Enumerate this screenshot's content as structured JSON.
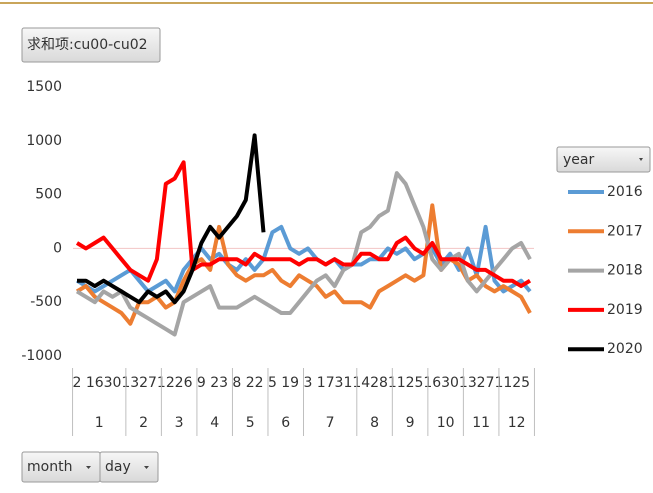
{
  "chart_data": {
    "type": "line",
    "title": "求和项:cu00-cu02",
    "legend_title": "year",
    "filters": [
      "month",
      "day"
    ],
    "categories": [
      "2",
      null,
      "16",
      null,
      "30",
      null,
      "13",
      null,
      "27",
      null,
      "12",
      null,
      "26",
      null,
      "9",
      null,
      "23",
      null,
      "8",
      null,
      "22",
      null,
      "5",
      null,
      "19",
      null,
      "3",
      null,
      "17",
      null,
      "31",
      null,
      "14",
      null,
      "28",
      null,
      "11",
      null,
      "25",
      null,
      "16",
      null,
      "30",
      null,
      "13",
      null,
      "27",
      null,
      "11",
      null,
      "25",
      null
    ],
    "months": [
      "1",
      "1",
      "1",
      "1",
      "1",
      "1",
      "2",
      "2",
      "2",
      "2",
      "3",
      "3",
      "3",
      "3",
      "4",
      "4",
      "4",
      "4",
      "5",
      "5",
      "5",
      "5",
      "6",
      "6",
      "6",
      "6",
      "7",
      "7",
      "7",
      "7",
      "7",
      "7",
      "8",
      "8",
      "8",
      "8",
      "9",
      "9",
      "9",
      "9",
      "10",
      "10",
      "10",
      "10",
      "11",
      "11",
      "11",
      "11",
      "12",
      "12",
      "12",
      "12"
    ],
    "ylim": [
      -1000,
      1500
    ],
    "yticks": [
      -1000,
      -500,
      0,
      500,
      1000,
      1500
    ],
    "zero_line": true,
    "legend": "right",
    "series": [
      {
        "name": "2016",
        "color": "#5b9bd5",
        "values": [
          -300,
          -350,
          -400,
          -350,
          -300,
          -250,
          -200,
          -300,
          -400,
          -350,
          -300,
          -400,
          -200,
          -100,
          0,
          -100,
          -50,
          -150,
          -200,
          -100,
          -200,
          -100,
          150,
          200,
          0,
          -50,
          0,
          -100,
          -150,
          -100,
          -200,
          -150,
          -150,
          -100,
          -100,
          0,
          -50,
          0,
          -100,
          -50,
          0,
          -150,
          -50,
          -200,
          0,
          -250,
          200,
          -300,
          -400,
          -350,
          -300,
          -400
        ]
      },
      {
        "name": "2017",
        "color": "#ed7d31",
        "values": [
          -400,
          -350,
          -450,
          -500,
          -550,
          -600,
          -700,
          -500,
          -500,
          -450,
          -550,
          -500,
          -300,
          -150,
          -100,
          -200,
          200,
          -150,
          -250,
          -300,
          -250,
          -250,
          -200,
          -300,
          -350,
          -250,
          -300,
          -350,
          -450,
          -400,
          -500,
          -500,
          -500,
          -550,
          -400,
          -350,
          -300,
          -250,
          -300,
          -250,
          400,
          -200,
          -100,
          -150,
          -300,
          -250,
          -350,
          -400,
          -350,
          -400,
          -450,
          -600
        ]
      },
      {
        "name": "2018",
        "color": "#a5a5a5",
        "values": [
          -400,
          -450,
          -500,
          -400,
          -450,
          -400,
          -550,
          -600,
          -650,
          -700,
          -750,
          -800,
          -500,
          -450,
          -400,
          -350,
          -550,
          -550,
          -550,
          -500,
          -450,
          -500,
          -550,
          -600,
          -600,
          -500,
          -400,
          -300,
          -250,
          -350,
          -200,
          -150,
          150,
          200,
          300,
          350,
          700,
          600,
          400,
          200,
          -100,
          -200,
          -100,
          -50,
          -300,
          -400,
          -300,
          -200,
          -100,
          0,
          50,
          -100
        ]
      },
      {
        "name": "2019",
        "color": "#ff0000",
        "values": [
          50,
          0,
          50,
          100,
          0,
          -100,
          -200,
          -250,
          -300,
          -100,
          600,
          650,
          800,
          -200,
          -150,
          -150,
          -100,
          -100,
          -100,
          -150,
          -50,
          -100,
          -100,
          -100,
          -100,
          -150,
          -100,
          -100,
          -150,
          -100,
          -150,
          -150,
          -50,
          -50,
          -100,
          -100,
          50,
          100,
          0,
          -50,
          50,
          -100,
          -100,
          -100,
          -150,
          -200,
          -200,
          -250,
          -300,
          -300,
          -350,
          -300
        ]
      },
      {
        "name": "2020",
        "color": "#000000",
        "values": [
          -300,
          -300,
          -350,
          -300,
          -350,
          -400,
          -450,
          -500,
          -400,
          -450,
          -400,
          -500,
          -400,
          -200,
          50,
          200,
          100,
          200,
          300,
          450,
          1050,
          150,
          null,
          null,
          null,
          null,
          null,
          null,
          null,
          null,
          null,
          null,
          null,
          null,
          null,
          null,
          null,
          null,
          null,
          null,
          null,
          null,
          null,
          null,
          null,
          null,
          null,
          null,
          null,
          null,
          null,
          null
        ]
      }
    ]
  }
}
